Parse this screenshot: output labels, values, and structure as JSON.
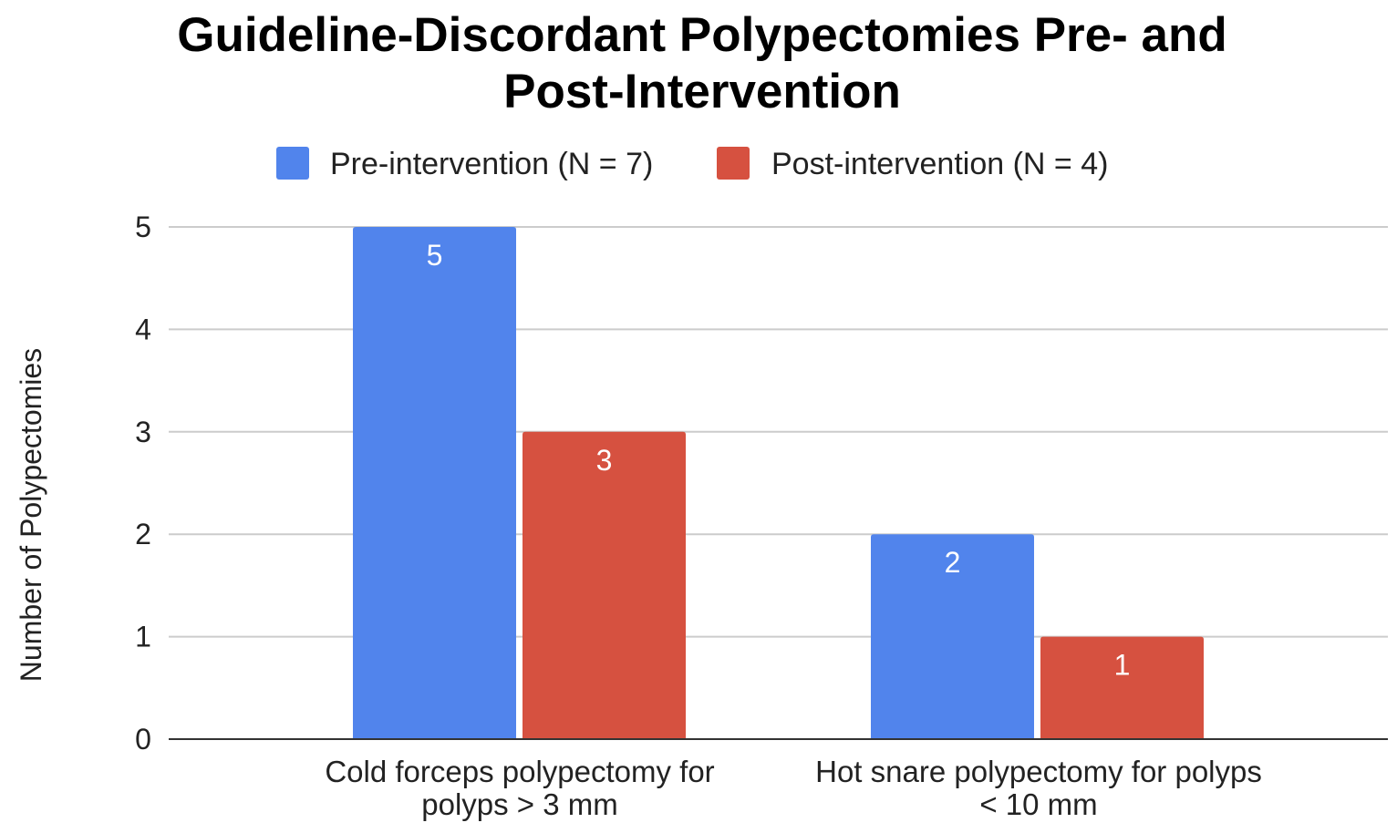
{
  "chart_data": {
    "type": "bar",
    "title": [
      "Guideline-Discordant Polypectomies Pre- and",
      "Post-Intervention"
    ],
    "xlabel": "",
    "ylabel": "Number of Polypectomies",
    "ylim": [
      0,
      5
    ],
    "yticks": [
      0,
      1,
      2,
      3,
      4,
      5
    ],
    "grid": true,
    "legend_position": "top",
    "categories": [
      [
        "Cold forceps polypectomy for",
        "polyps > 3 mm"
      ],
      [
        "Hot snare polypectomy for polyps",
        "< 10 mm"
      ]
    ],
    "series": [
      {
        "name": "Pre-intervention (N = 7)",
        "color": "#5184ec",
        "values": [
          5,
          2
        ]
      },
      {
        "name": "Post-intervention (N = 4)",
        "color": "#d65140",
        "values": [
          3,
          1
        ]
      }
    ],
    "data_labels": true
  }
}
